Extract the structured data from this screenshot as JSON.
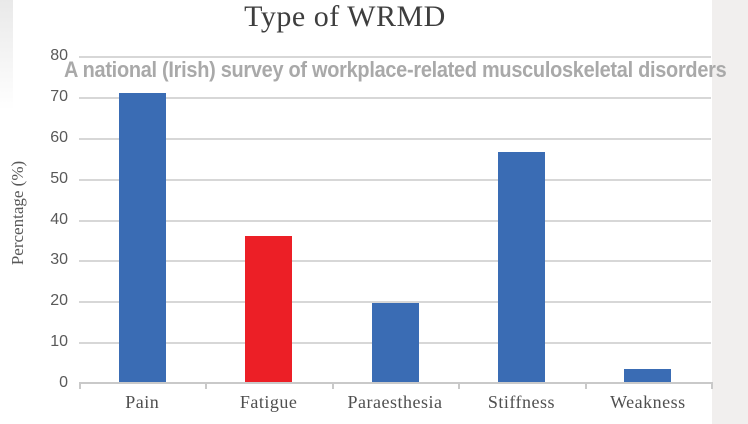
{
  "chart_data": {
    "type": "bar",
    "title": "Type of WRMD",
    "annotation": "A national (Irish) survey of workplace-related musculoskeletal disorders",
    "categories": [
      "Pain",
      "Fatigue",
      "Paraesthesia",
      "Stiffness",
      "Weakness"
    ],
    "values": [
      71,
      36,
      19.5,
      56.5,
      3.5
    ],
    "bar_colors": [
      "#3a6cb4",
      "#ec1f26",
      "#3a6cb4",
      "#3a6cb4",
      "#3a6cb4"
    ],
    "xlabel": "",
    "ylabel": "Percentage (%)",
    "ylim": [
      0,
      80
    ],
    "yticks": [
      0,
      10,
      20,
      30,
      40,
      50,
      60,
      70,
      80
    ],
    "grid": true,
    "legend": false
  },
  "colors": {
    "bar_blue": "#3a6cb4",
    "bar_red": "#ec1f26",
    "gridline": "#d7d7d7",
    "axis_line": "#c9c9c9",
    "tick_text": "#595959",
    "title_text": "#3e3e3e",
    "category_text": "#4f4f4f",
    "watermark_text": "#a9a9a9",
    "right_band": "#f1efee",
    "left_band": "#e9e9e9"
  }
}
